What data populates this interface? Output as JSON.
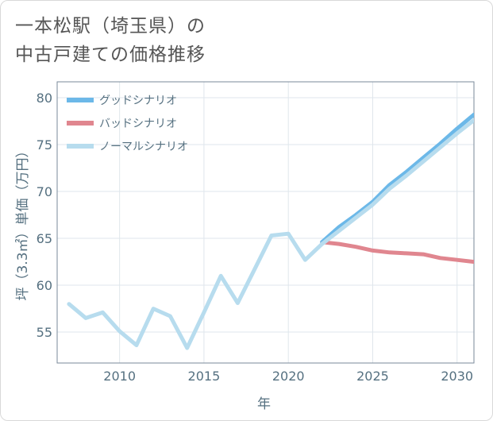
{
  "title": {
    "line1": "一本松駅（埼玉県）の",
    "line2": "中古戸建ての価格推移"
  },
  "colors": {
    "good": "#6cb8e8",
    "bad": "#e0868f",
    "normal": "#b7dcee",
    "axis": "#7a8a99",
    "grid": "#dfe6ec",
    "text": "#557080"
  },
  "chart_data": {
    "type": "line",
    "title": "一本松駅（埼玉県）の中古戸建ての価格推移",
    "xlabel": "年",
    "ylabel": "坪（3.3㎡）単価（万円）",
    "xlim": [
      2006.3,
      2031.0
    ],
    "ylim": [
      51.7,
      81.7
    ],
    "xticks": [
      2010,
      2015,
      2020,
      2025,
      2030
    ],
    "yticks": [
      55,
      60,
      65,
      70,
      75,
      80
    ],
    "grid": true,
    "legend_position": "top-left",
    "series": [
      {
        "name": "グッドシナリオ",
        "color_key": "good",
        "x": [
          2022,
          2023,
          2024,
          2025,
          2026,
          2027,
          2028,
          2029,
          2030,
          2031
        ],
        "y": [
          64.6,
          66.2,
          67.5,
          68.9,
          70.7,
          72.1,
          73.6,
          75.1,
          76.7,
          78.2
        ]
      },
      {
        "name": "バッドシナリオ",
        "color_key": "bad",
        "x": [
          2022,
          2023,
          2024,
          2025,
          2026,
          2027,
          2028,
          2029,
          2030,
          2031
        ],
        "y": [
          64.6,
          64.4,
          64.1,
          63.7,
          63.5,
          63.4,
          63.3,
          62.9,
          62.7,
          62.5
        ]
      },
      {
        "name": "ノーマルシナリオ",
        "color_key": "normal",
        "x": [
          2007,
          2008,
          2009,
          2010,
          2011,
          2012,
          2013,
          2014,
          2015,
          2016,
          2017,
          2018,
          2019,
          2020,
          2021,
          2022,
          2023,
          2024,
          2025,
          2026,
          2027,
          2028,
          2029,
          2030,
          2031
        ],
        "y": [
          58.0,
          56.5,
          57.1,
          55.1,
          53.6,
          57.5,
          56.7,
          53.3,
          57.1,
          61.0,
          58.1,
          61.7,
          65.3,
          65.5,
          62.7,
          64.4,
          65.8,
          67.2,
          68.6,
          70.3,
          71.7,
          73.2,
          74.7,
          76.2,
          77.6
        ]
      }
    ]
  }
}
